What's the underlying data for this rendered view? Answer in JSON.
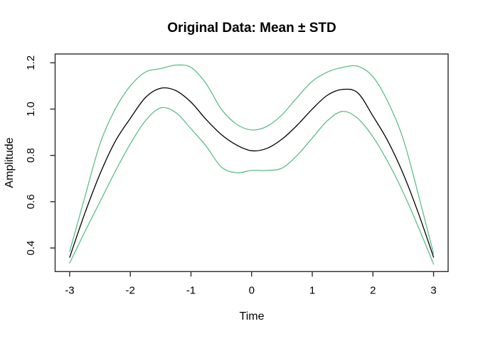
{
  "figure": {
    "background": "#ffffff",
    "axis_color": "#2b2b2b",
    "mean_color": "#000000",
    "std_color": "#5dbe8b"
  },
  "chart_data": {
    "type": "line",
    "title": "Original Data: Mean ± STD",
    "xlabel": "Time",
    "ylabel": "Amplitude",
    "xlim": [
      -3.24,
      3.24
    ],
    "ylim": [
      0.298,
      1.238
    ],
    "grid": false,
    "legend": "none",
    "x_tick_values": [
      -3,
      -2,
      -1,
      0,
      1,
      2,
      3
    ],
    "x_tick_labels": [
      "-3",
      "-2",
      "-1",
      "0",
      "1",
      "2",
      "3"
    ],
    "y_tick_values": [
      0.4,
      0.6,
      0.8,
      1.0,
      1.2
    ],
    "y_tick_labels": [
      "0.4",
      "0.6",
      "0.8",
      "1.0",
      "1.2"
    ],
    "x": [
      -3,
      -2.75,
      -2.5,
      -2.25,
      -2,
      -1.75,
      -1.5,
      -1.25,
      -1,
      -0.75,
      -0.5,
      -0.25,
      0,
      0.25,
      0.5,
      0.75,
      1,
      1.25,
      1.5,
      1.75,
      2,
      2.25,
      2.5,
      2.75,
      3
    ],
    "series": [
      {
        "name": "mean",
        "color": "#000000",
        "values": [
          0.36,
          0.55,
          0.72,
          0.86,
          0.96,
          1.05,
          1.09,
          1.08,
          1.03,
          0.955,
          0.89,
          0.845,
          0.82,
          0.83,
          0.87,
          0.93,
          1.0,
          1.06,
          1.085,
          1.07,
          0.97,
          0.86,
          0.72,
          0.55,
          0.36
        ]
      },
      {
        "name": "mean_plus_std",
        "color": "#5dbe8b",
        "values": [
          0.385,
          0.62,
          0.85,
          1.0,
          1.1,
          1.16,
          1.175,
          1.19,
          1.18,
          1.11,
          1.0,
          0.935,
          0.91,
          0.925,
          0.975,
          1.05,
          1.12,
          1.16,
          1.18,
          1.185,
          1.14,
          1.03,
          0.87,
          0.63,
          0.375
        ]
      },
      {
        "name": "mean_minus_std",
        "color": "#5dbe8b",
        "values": [
          0.335,
          0.47,
          0.6,
          0.73,
          0.85,
          0.95,
          1.005,
          0.985,
          0.915,
          0.84,
          0.75,
          0.725,
          0.735,
          0.735,
          0.745,
          0.8,
          0.875,
          0.95,
          0.99,
          0.96,
          0.88,
          0.77,
          0.64,
          0.49,
          0.33
        ]
      }
    ]
  }
}
